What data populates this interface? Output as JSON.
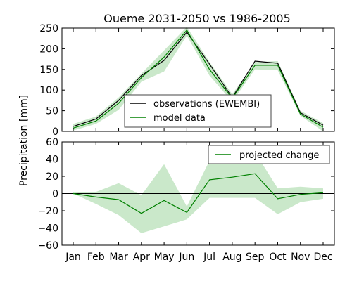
{
  "chart_data": [
    {
      "type": "line",
      "title": "Oueme 2031-2050 vs 1986-2005",
      "ylabel": "Precipitation [mm]",
      "categories": [
        "Jan",
        "Feb",
        "Mar",
        "Apr",
        "May",
        "Jun",
        "Jul",
        "Aug",
        "Sep",
        "Oct",
        "Nov",
        "Dec"
      ],
      "ylim": [
        0,
        250
      ],
      "yticks": [
        0,
        50,
        100,
        150,
        200,
        250
      ],
      "legend_position": "lower-center",
      "colors": {
        "observations": "#000000",
        "model": "#008000",
        "band": "#9fd69f"
      },
      "series": [
        {
          "name": "observations (EWEMBI)",
          "values": [
            12,
            30,
            75,
            135,
            172,
            240,
            163,
            82,
            170,
            165,
            45,
            15
          ]
        },
        {
          "name": "model data",
          "values": [
            8,
            25,
            68,
            130,
            180,
            245,
            150,
            80,
            160,
            160,
            42,
            10
          ]
        }
      ],
      "band": {
        "lower": [
          2,
          18,
          52,
          120,
          145,
          232,
          135,
          72,
          150,
          148,
          38,
          0
        ],
        "upper": [
          18,
          36,
          82,
          140,
          196,
          253,
          168,
          90,
          168,
          170,
          50,
          20
        ]
      }
    },
    {
      "type": "line",
      "ylabel": "Precipitation [mm]",
      "categories": [
        "Jan",
        "Feb",
        "Mar",
        "Apr",
        "May",
        "Jun",
        "Jul",
        "Aug",
        "Sep",
        "Oct",
        "Nov",
        "Dec"
      ],
      "ylim": [
        -60,
        60
      ],
      "yticks": [
        -60,
        -40,
        -20,
        0,
        20,
        40,
        60
      ],
      "legend_position": "upper-right",
      "zero_line": true,
      "colors": {
        "change": "#008000",
        "band": "#9fd69f",
        "zero": "#000000"
      },
      "series": [
        {
          "name": "projected change",
          "values": [
            0,
            -4,
            -7,
            -23,
            -8,
            -22,
            16,
            19,
            23,
            -6,
            -1,
            1
          ]
        }
      ],
      "band": {
        "lower": [
          0,
          -12,
          -25,
          -46,
          -38,
          -30,
          -5,
          -5,
          -5,
          -24,
          -10,
          -6
        ],
        "upper": [
          1,
          2,
          12,
          -2,
          34,
          -15,
          38,
          35,
          48,
          6,
          8,
          6
        ]
      }
    }
  ]
}
